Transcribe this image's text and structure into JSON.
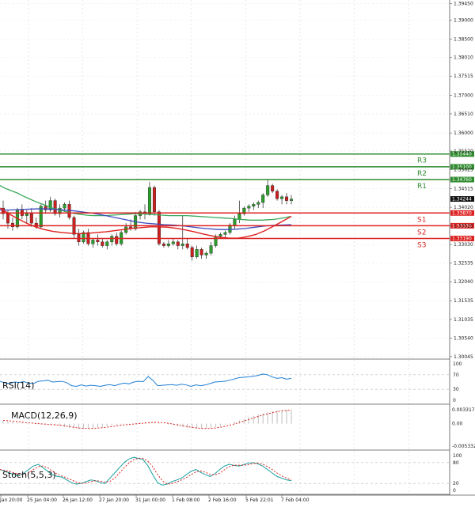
{
  "chart_data": {
    "type": "candlestick",
    "main": {
      "ylim": [
        1.3,
        1.395
      ],
      "y_ticks": [
        "1.39450",
        "1.39000",
        "1.38500",
        "1.38010",
        "1.37515",
        "1.37000",
        "1.36510",
        "1.36000",
        "1.35520",
        "1.35025",
        "1.34515",
        "1.34020",
        "1.33525",
        "1.33030",
        "1.32535",
        "1.32040",
        "1.31535",
        "1.31035",
        "1.30540",
        "1.30045"
      ],
      "current_price": "1.34244",
      "levels": [
        {
          "name": "R3",
          "value": 1.3544,
          "label": "1.35440",
          "color": "#2e8b2e"
        },
        {
          "name": "R2",
          "value": 1.351,
          "label": "1.35100",
          "color": "#2e8b2e"
        },
        {
          "name": "R1",
          "value": 1.3476,
          "label": "1.34760",
          "color": "#2e8b2e"
        },
        {
          "name": "S1",
          "value": 1.3387,
          "label": "1.33870",
          "color": "#dd2222"
        },
        {
          "name": "S2",
          "value": 1.3353,
          "label": "1.33530",
          "color": "#dd2222"
        },
        {
          "name": "S3",
          "value": 1.3319,
          "label": "1.33190",
          "color": "#dd2222"
        }
      ],
      "candles": [
        [
          1.34,
          1.342,
          1.337,
          1.3385
        ],
        [
          1.3385,
          1.3395,
          1.3345,
          1.336
        ],
        [
          1.336,
          1.3375,
          1.334,
          1.335
        ],
        [
          1.335,
          1.34,
          1.3345,
          1.3395
        ],
        [
          1.3395,
          1.341,
          1.337,
          1.338
        ],
        [
          1.338,
          1.3395,
          1.336,
          1.3385
        ],
        [
          1.3385,
          1.34,
          1.335,
          1.336
        ],
        [
          1.336,
          1.3375,
          1.3345,
          1.335
        ],
        [
          1.335,
          1.341,
          1.3345,
          1.3405
        ],
        [
          1.3405,
          1.342,
          1.3385,
          1.3395
        ],
        [
          1.3395,
          1.343,
          1.339,
          1.342
        ],
        [
          1.342,
          1.3425,
          1.338,
          1.3385
        ],
        [
          1.3385,
          1.341,
          1.3375,
          1.34
        ],
        [
          1.34,
          1.3415,
          1.339,
          1.341
        ],
        [
          1.341,
          1.342,
          1.337,
          1.3375
        ],
        [
          1.3375,
          1.338,
          1.332,
          1.333
        ],
        [
          1.333,
          1.3345,
          1.33,
          1.331
        ],
        [
          1.331,
          1.334,
          1.3305,
          1.3335
        ],
        [
          1.3335,
          1.3345,
          1.33,
          1.3305
        ],
        [
          1.3305,
          1.332,
          1.3295,
          1.3315
        ],
        [
          1.3315,
          1.333,
          1.33,
          1.331
        ],
        [
          1.331,
          1.332,
          1.3295,
          1.33
        ],
        [
          1.33,
          1.3315,
          1.329,
          1.331
        ],
        [
          1.331,
          1.333,
          1.33,
          1.3325
        ],
        [
          1.3325,
          1.3335,
          1.33,
          1.3305
        ],
        [
          1.3305,
          1.334,
          1.33,
          1.3335
        ],
        [
          1.3335,
          1.336,
          1.333,
          1.335
        ],
        [
          1.335,
          1.337,
          1.334,
          1.3345
        ],
        [
          1.3345,
          1.339,
          1.334,
          1.338
        ],
        [
          1.338,
          1.3395,
          1.337,
          1.339
        ],
        [
          1.339,
          1.341,
          1.337,
          1.3385
        ],
        [
          1.3385,
          1.347,
          1.338,
          1.3455
        ],
        [
          1.3455,
          1.346,
          1.338,
          1.339
        ],
        [
          1.339,
          1.3395,
          1.33,
          1.3305
        ],
        [
          1.3305,
          1.331,
          1.3295,
          1.33
        ],
        [
          1.33,
          1.3315,
          1.3295,
          1.3305
        ],
        [
          1.3305,
          1.332,
          1.33,
          1.331
        ],
        [
          1.331,
          1.3315,
          1.329,
          1.33
        ],
        [
          1.33,
          1.338,
          1.329,
          1.3305
        ],
        [
          1.3305,
          1.332,
          1.329,
          1.3295
        ],
        [
          1.3295,
          1.33,
          1.326,
          1.327
        ],
        [
          1.327,
          1.33,
          1.3265,
          1.329
        ],
        [
          1.329,
          1.3295,
          1.3265,
          1.3275
        ],
        [
          1.3275,
          1.3285,
          1.3265,
          1.328
        ],
        [
          1.328,
          1.331,
          1.3275,
          1.33
        ],
        [
          1.33,
          1.333,
          1.3295,
          1.3325
        ],
        [
          1.3325,
          1.3335,
          1.332,
          1.333
        ],
        [
          1.333,
          1.334,
          1.332,
          1.3335
        ],
        [
          1.3335,
          1.336,
          1.333,
          1.3355
        ],
        [
          1.3355,
          1.338,
          1.3345,
          1.337
        ],
        [
          1.337,
          1.342,
          1.336,
          1.3385
        ],
        [
          1.3385,
          1.3405,
          1.338,
          1.34
        ],
        [
          1.34,
          1.341,
          1.339,
          1.3405
        ],
        [
          1.3405,
          1.3415,
          1.3395,
          1.341
        ],
        [
          1.341,
          1.342,
          1.34,
          1.3415
        ],
        [
          1.3415,
          1.344,
          1.34,
          1.3435
        ],
        [
          1.3435,
          1.3475,
          1.343,
          1.346
        ],
        [
          1.346,
          1.3465,
          1.344,
          1.3445
        ],
        [
          1.3445,
          1.345,
          1.342,
          1.3425
        ],
        [
          1.3425,
          1.3435,
          1.341,
          1.343
        ],
        [
          1.343,
          1.344,
          1.341,
          1.342
        ],
        [
          1.342,
          1.3435,
          1.341,
          1.3424
        ]
      ],
      "ma_green": [
        1.346,
        1.3452,
        1.3446,
        1.344,
        1.3432,
        1.3425,
        1.3418,
        1.3412,
        1.3406,
        1.34,
        1.3396,
        1.3392,
        1.3388,
        1.3385,
        1.3383,
        1.3381,
        1.338,
        1.338,
        1.338,
        1.3381,
        1.3382,
        1.3383,
        1.3384,
        1.3385,
        1.3385,
        1.3384,
        1.3383,
        1.3382,
        1.3381,
        1.338,
        1.338,
        1.338,
        1.338,
        1.3379,
        1.3378,
        1.3377,
        1.3376,
        1.3375,
        1.3374,
        1.3373,
        1.3372,
        1.337,
        1.3369,
        1.3368,
        1.3368,
        1.3368,
        1.3369,
        1.337,
        1.3372,
        1.3375,
        1.3378
      ],
      "ma_blue": [
        1.3395,
        1.3395,
        1.3396,
        1.3397,
        1.3398,
        1.3398,
        1.3397,
        1.3395,
        1.3393,
        1.339,
        1.3387,
        1.3383,
        1.3378,
        1.3373,
        1.3368,
        1.3363,
        1.336,
        1.3358,
        1.3356,
        1.3355,
        1.3353,
        1.335,
        1.3347,
        1.3345,
        1.3343,
        1.3343,
        1.3344,
        1.3346,
        1.3349,
        1.3352,
        1.3354,
        1.3355,
        1.3356
      ],
      "ma_red": [
        1.34,
        1.3385,
        1.3372,
        1.336,
        1.335,
        1.3343,
        1.3338,
        1.3335,
        1.3333,
        1.3332,
        1.3333,
        1.3335,
        1.3337,
        1.334,
        1.3343,
        1.3346,
        1.3348,
        1.335,
        1.335,
        1.3349,
        1.3346,
        1.3342,
        1.3337,
        1.3331,
        1.3326,
        1.3322,
        1.332,
        1.332,
        1.3324,
        1.333,
        1.334,
        1.3352,
        1.3365,
        1.3378
      ]
    },
    "rsi": {
      "title": "RSI(14)",
      "ticks": [
        "100",
        "70",
        "30",
        "0"
      ],
      "values": [
        52,
        48,
        46,
        50,
        49,
        51,
        47,
        46,
        52,
        53,
        55,
        50,
        51,
        52,
        48,
        40,
        38,
        42,
        39,
        41,
        40,
        38,
        41,
        43,
        40,
        44,
        47,
        45,
        50,
        52,
        51,
        65,
        55,
        40,
        41,
        42,
        43,
        41,
        44,
        42,
        38,
        42,
        40,
        42,
        46,
        50,
        51,
        52,
        55,
        58,
        62,
        63,
        64,
        66,
        68,
        72,
        70,
        64,
        60,
        62,
        58,
        60
      ],
      "color": "#1f7fd6"
    },
    "macd": {
      "title": "MACD(12,26,9)",
      "ticks": [
        "0.003317",
        "0.00",
        "-0.005332"
      ],
      "hist": [
        0.0008,
        0.0006,
        0.0004,
        0.0003,
        0.0002,
        0.0001,
        0.0,
        -0.0001,
        -0.0002,
        -0.0002,
        -0.0003,
        -0.0004,
        -0.0006,
        -0.0008,
        -0.001,
        -0.0011,
        -0.0012,
        -0.0012,
        -0.0011,
        -0.001,
        -0.0009,
        -0.0008,
        -0.0006,
        -0.0004,
        -0.0003,
        -0.0002,
        -0.0001,
        0.0,
        0.0001,
        0.0002,
        0.0003,
        0.0004,
        0.0003,
        0.0002,
        0.0,
        -0.0002,
        -0.0004,
        -0.0006,
        -0.0008,
        -0.001,
        -0.0011,
        -0.0012,
        -0.0012,
        -0.0011,
        -0.001,
        -0.0008,
        -0.0005,
        -0.0002,
        0.0001,
        0.0004,
        0.0008,
        0.0012,
        0.0016,
        0.0019,
        0.0022,
        0.0025,
        0.0028,
        0.003,
        0.0031,
        0.0032,
        0.0033,
        0.0033
      ],
      "color": "#c4c4c4",
      "signal_color": "#dd2222"
    },
    "stoch": {
      "title": "Stoch(5,5,3)",
      "ticks": [
        "100",
        "80",
        "20",
        "0"
      ],
      "k": [
        60,
        55,
        50,
        45,
        42,
        50,
        60,
        70,
        75,
        65,
        55,
        45,
        40,
        38,
        30,
        22,
        18,
        20,
        25,
        30,
        28,
        22,
        20,
        35,
        50,
        65,
        80,
        90,
        95,
        92,
        88,
        70,
        45,
        22,
        15,
        18,
        25,
        30,
        35,
        45,
        55,
        60,
        52,
        45,
        40,
        48,
        60,
        70,
        75,
        72,
        70,
        74,
        78,
        80,
        76,
        70,
        60,
        50,
        40,
        35,
        30,
        28
      ],
      "k_color": "#1aa0a0",
      "d_color": "#dd2222"
    },
    "x_labels": [
      "Jan 20:00",
      "25 Jan 04:00",
      "26 Jan 12:00",
      "27 Jan 20:00",
      "31 Jan 00:00",
      "1 Feb 08:00",
      "2 Feb 16:00",
      "5 Feb 22:01",
      "7 Feb 04:00"
    ]
  }
}
